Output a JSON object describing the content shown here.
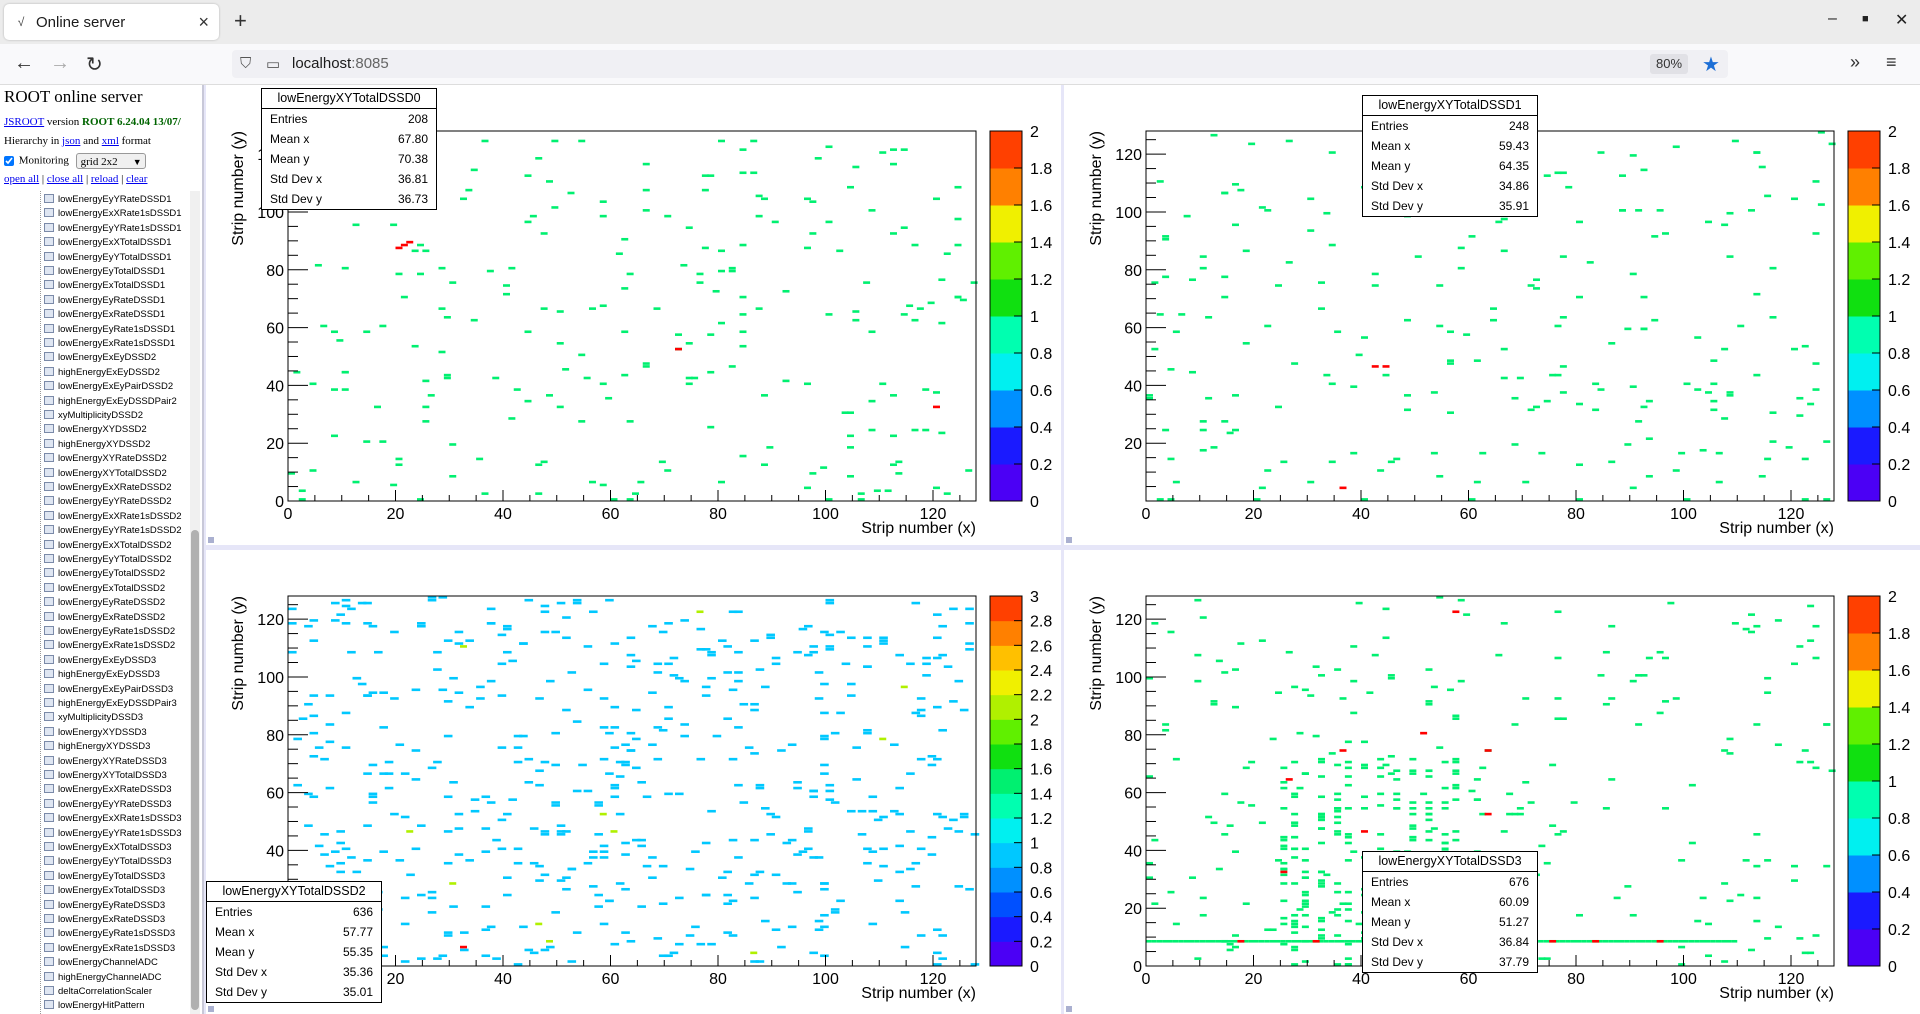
{
  "browser": {
    "tab_title": "Online server",
    "url_host": "localhost",
    "url_port": ":8085",
    "zoom": "80%"
  },
  "sidebar": {
    "title": "ROOT online server",
    "jsroot_link": "JSROOT",
    "version_word": "version",
    "version_value": "ROOT 6.24.04 13/07/",
    "hierarchy_prefix": "Hierarchy in",
    "json_link": "json",
    "and_word": "and",
    "xml_link": "xml",
    "format_word": "format",
    "monitoring_label": "Monitoring",
    "layout_select": "grid 2x2",
    "actions": [
      "open all",
      "close all",
      "reload",
      "clear"
    ],
    "tree_items": [
      "lowEnergyEyYRateDSSD1",
      "lowEnergyExXRate1sDSSD1",
      "lowEnergyEyYRate1sDSSD1",
      "lowEnergyExXTotalDSSD1",
      "lowEnergyEyYTotalDSSD1",
      "lowEnergyEyTotalDSSD1",
      "lowEnergyExTotalDSSD1",
      "lowEnergyEyRateDSSD1",
      "lowEnergyExRateDSSD1",
      "lowEnergyEyRate1sDSSD1",
      "lowEnergyExRate1sDSSD1",
      "lowEnergyExEyDSSD2",
      "highEnergyExEyDSSD2",
      "lowEnergyExEyPairDSSD2",
      "highEnergyExEyDSSDPair2",
      "xyMultiplicityDSSD2",
      "lowEnergyXYDSSD2",
      "highEnergyXYDSSD2",
      "lowEnergyXYRateDSSD2",
      "lowEnergyXYTotalDSSD2",
      "lowEnergyExXRateDSSD2",
      "lowEnergyEyYRateDSSD2",
      "lowEnergyExXRate1sDSSD2",
      "lowEnergyEyYRate1sDSSD2",
      "lowEnergyExXTotalDSSD2",
      "lowEnergyEyYTotalDSSD2",
      "lowEnergyEyTotalDSSD2",
      "lowEnergyExTotalDSSD2",
      "lowEnergyEyRateDSSD2",
      "lowEnergyExRateDSSD2",
      "lowEnergyEyRate1sDSSD2",
      "lowEnergyExRate1sDSSD2",
      "lowEnergyExEyDSSD3",
      "highEnergyExEyDSSD3",
      "lowEnergyExEyPairDSSD3",
      "highEnergyExEyDSSDPair3",
      "xyMultiplicityDSSD3",
      "lowEnergyXYDSSD3",
      "highEnergyXYDSSD3",
      "lowEnergyXYRateDSSD3",
      "lowEnergyXYTotalDSSD3",
      "lowEnergyExXRateDSSD3",
      "lowEnergyEyYRateDSSD3",
      "lowEnergyExXRate1sDSSD3",
      "lowEnergyEyYRate1sDSSD3",
      "lowEnergyExXTotalDSSD3",
      "lowEnergyEyYTotalDSSD3",
      "lowEnergyEyTotalDSSD3",
      "lowEnergyExTotalDSSD3",
      "lowEnergyEyRateDSSD3",
      "lowEnergyExRateDSSD3",
      "lowEnergyEyRate1sDSSD3",
      "lowEnergyExRate1sDSSD3",
      "lowEnergyChannelADC",
      "highEnergyChannelADC",
      "deltaCorrelationScaler",
      "lowEnergyHitPattern"
    ]
  },
  "chart_data": [
    {
      "type": "heatmap",
      "name": "lowEnergyXYTotalDSSD0",
      "xlabel": "Strip number (x)",
      "ylabel": "Strip number (y)",
      "xlim": [
        0,
        128
      ],
      "ylim": [
        0,
        128
      ],
      "x_ticks": [
        "0",
        "20",
        "40",
        "60",
        "80",
        "100",
        "120"
      ],
      "y_ticks": [
        "0",
        "20",
        "40",
        "60",
        "80",
        "100",
        "120"
      ],
      "z_range": [
        0,
        2
      ],
      "z_ticks": [
        "0",
        "0.2",
        "0.4",
        "0.6",
        "0.8",
        "1",
        "1.2",
        "1.4",
        "1.6",
        "1.8",
        "2"
      ],
      "stats": [
        [
          "Entries",
          "208"
        ],
        [
          "Mean x",
          "67.80"
        ],
        [
          "Mean y",
          "70.38"
        ],
        [
          "Std Dev x",
          "36.81"
        ],
        [
          "Std Dev y",
          "36.73"
        ]
      ],
      "points": [
        [
          20,
          87,
          2
        ],
        [
          21,
          88,
          2
        ],
        [
          22,
          89,
          2
        ],
        [
          72,
          52,
          2
        ],
        [
          120,
          32,
          2
        ],
        [
          19,
          95,
          1
        ],
        [
          23,
          86,
          1
        ],
        [
          24,
          88,
          1
        ],
        [
          44,
          96,
          1
        ],
        [
          48,
          110,
          1
        ],
        [
          52,
          106,
          1
        ],
        [
          58,
          98,
          1
        ],
        [
          62,
          90,
          1
        ],
        [
          66,
          107,
          1
        ],
        [
          70,
          98,
          1
        ],
        [
          74,
          94,
          1
        ],
        [
          78,
          112,
          1
        ],
        [
          80,
          86,
          1
        ],
        [
          82,
          80,
          1
        ],
        [
          84,
          88,
          1
        ],
        [
          88,
          104,
          1
        ],
        [
          90,
          96,
          1
        ],
        [
          96,
          104,
          1
        ],
        [
          100,
          96,
          1
        ],
        [
          104,
          108,
          1
        ],
        [
          108,
          100,
          1
        ],
        [
          112,
          92,
          1
        ],
        [
          116,
          88,
          1
        ],
        [
          120,
          104,
          1
        ],
        [
          124,
          108,
          1
        ],
        [
          10,
          80,
          1
        ],
        [
          6,
          60,
          1
        ],
        [
          14,
          58,
          1
        ],
        [
          20,
          78,
          1
        ],
        [
          28,
          66,
          1
        ],
        [
          34,
          62,
          1
        ],
        [
          40,
          74,
          1
        ],
        [
          44,
          58,
          1
        ],
        [
          50,
          54,
          1
        ],
        [
          56,
          66,
          1
        ],
        [
          62,
          58,
          1
        ],
        [
          68,
          66,
          1
        ],
        [
          76,
          78,
          1
        ],
        [
          84,
          70,
          1
        ],
        [
          92,
          72,
          1
        ],
        [
          100,
          64,
          1
        ],
        [
          108,
          58,
          1
        ],
        [
          116,
          62,
          1
        ],
        [
          124,
          70,
          1
        ],
        [
          4,
          40,
          1
        ],
        [
          10,
          44,
          1
        ],
        [
          16,
          32,
          1
        ],
        [
          26,
          36,
          1
        ],
        [
          38,
          42,
          1
        ],
        [
          42,
          38,
          1
        ],
        [
          44,
          34,
          1
        ],
        [
          50,
          32,
          1
        ],
        [
          58,
          40,
          1
        ],
        [
          66,
          46,
          1
        ],
        [
          74,
          42,
          1
        ],
        [
          82,
          46,
          1
        ],
        [
          88,
          36,
          1
        ],
        [
          96,
          40,
          1
        ],
        [
          104,
          30,
          1
        ],
        [
          112,
          36,
          1
        ],
        [
          118,
          38,
          1
        ],
        [
          4,
          10,
          1
        ],
        [
          12,
          6,
          1
        ],
        [
          20,
          14,
          1
        ],
        [
          30,
          8,
          1
        ],
        [
          36,
          2,
          1
        ],
        [
          46,
          12,
          1
        ],
        [
          56,
          6,
          1
        ],
        [
          64,
          2,
          1
        ],
        [
          70,
          10,
          1
        ],
        [
          80,
          6,
          1
        ],
        [
          88,
          12,
          1
        ],
        [
          96,
          4,
          1
        ],
        [
          104,
          8,
          1
        ],
        [
          112,
          12,
          1
        ],
        [
          120,
          4,
          1
        ],
        [
          126,
          10,
          1
        ],
        [
          2,
          0,
          1
        ],
        [
          24,
          0,
          1
        ],
        [
          60,
          0,
          1
        ],
        [
          100,
          0,
          1
        ],
        [
          110,
          120,
          1
        ],
        [
          98,
          118,
          1
        ],
        [
          36,
          124,
          1
        ],
        [
          14,
          118,
          1
        ],
        [
          54,
          124,
          1
        ],
        [
          86,
          124,
          1
        ]
      ]
    },
    {
      "type": "heatmap",
      "name": "lowEnergyXYTotalDSSD1",
      "xlabel": "Strip number (x)",
      "ylabel": "Strip number (y)",
      "xlim": [
        0,
        128
      ],
      "ylim": [
        0,
        128
      ],
      "x_ticks": [
        "0",
        "20",
        "40",
        "60",
        "80",
        "100",
        "120"
      ],
      "y_ticks": [
        "20",
        "40",
        "60",
        "80",
        "100",
        "120"
      ],
      "z_range": [
        0,
        2
      ],
      "z_ticks": [
        "0",
        "0.2",
        "0.4",
        "0.6",
        "0.8",
        "1",
        "1.2",
        "1.4",
        "1.6",
        "1.8",
        "2"
      ],
      "stats": [
        [
          "Entries",
          "248"
        ],
        [
          "Mean x",
          "59.43"
        ],
        [
          "Mean y",
          "64.35"
        ],
        [
          "Std Dev x",
          "34.86"
        ],
        [
          "Std Dev y",
          "35.91"
        ]
      ],
      "points": [
        [
          42,
          46,
          2
        ],
        [
          44,
          46,
          2
        ],
        [
          36,
          4,
          2
        ],
        [
          12,
          126,
          1
        ],
        [
          26,
          124,
          1
        ],
        [
          34,
          120,
          1
        ],
        [
          44,
          118,
          1
        ],
        [
          56,
          122,
          1
        ],
        [
          60,
          126,
          1
        ],
        [
          66,
          118,
          1
        ],
        [
          74,
          112,
          1
        ],
        [
          84,
          120,
          1
        ],
        [
          92,
          114,
          1
        ],
        [
          98,
          122,
          1
        ],
        [
          14,
          106,
          1
        ],
        [
          22,
          100,
          1
        ],
        [
          30,
          104,
          1
        ],
        [
          40,
          108,
          1
        ],
        [
          48,
          98,
          1
        ],
        [
          54,
          104,
          1
        ],
        [
          62,
          100,
          1
        ],
        [
          70,
          106,
          1
        ],
        [
          80,
          96,
          1
        ],
        [
          88,
          100,
          1
        ],
        [
          96,
          92,
          1
        ],
        [
          104,
          96,
          1
        ],
        [
          112,
          100,
          1
        ],
        [
          120,
          104,
          1
        ],
        [
          124,
          92,
          1
        ],
        [
          10,
          84,
          1
        ],
        [
          18,
          86,
          1
        ],
        [
          26,
          82,
          1
        ],
        [
          34,
          88,
          1
        ],
        [
          42,
          78,
          1
        ],
        [
          50,
          84,
          1
        ],
        [
          58,
          80,
          1
        ],
        [
          66,
          86,
          1
        ],
        [
          72,
          76,
          1
        ],
        [
          82,
          82,
          1
        ],
        [
          90,
          78,
          1
        ],
        [
          108,
          84,
          1
        ],
        [
          116,
          80,
          1
        ],
        [
          6,
          64,
          1
        ],
        [
          14,
          70,
          1
        ],
        [
          22,
          60,
          1
        ],
        [
          32,
          66,
          1
        ],
        [
          40,
          56,
          1
        ],
        [
          48,
          62,
          1
        ],
        [
          56,
          58,
          1
        ],
        [
          64,
          66,
          1
        ],
        [
          76,
          60,
          1
        ],
        [
          86,
          54,
          1
        ],
        [
          94,
          62,
          1
        ],
        [
          102,
          56,
          1
        ],
        [
          110,
          60,
          1
        ],
        [
          120,
          52,
          1
        ],
        [
          8,
          44,
          1
        ],
        [
          16,
          36,
          1
        ],
        [
          24,
          32,
          1
        ],
        [
          34,
          40,
          1
        ],
        [
          48,
          36,
          1
        ],
        [
          56,
          30,
          1
        ],
        [
          66,
          42,
          1
        ],
        [
          74,
          34,
          1
        ],
        [
          84,
          38,
          1
        ],
        [
          92,
          32,
          1
        ],
        [
          100,
          40,
          1
        ],
        [
          108,
          36,
          1
        ],
        [
          116,
          30,
          1
        ],
        [
          124,
          38,
          1
        ],
        [
          4,
          14,
          1
        ],
        [
          12,
          18,
          1
        ],
        [
          22,
          10,
          1
        ],
        [
          30,
          6,
          1
        ],
        [
          46,
          14,
          1
        ],
        [
          54,
          8,
          1
        ],
        [
          62,
          16,
          1
        ],
        [
          70,
          6,
          1
        ],
        [
          80,
          12,
          1
        ],
        [
          90,
          4,
          1
        ],
        [
          98,
          10,
          1
        ],
        [
          106,
          16,
          1
        ],
        [
          114,
          8,
          1
        ],
        [
          122,
          14,
          1
        ],
        [
          2,
          0,
          1
        ],
        [
          20,
          0,
          1
        ],
        [
          40,
          0,
          1
        ],
        [
          60,
          0,
          1
        ],
        [
          80,
          0,
          1
        ],
        [
          100,
          0,
          1
        ],
        [
          126,
          0,
          1
        ]
      ]
    },
    {
      "type": "heatmap",
      "name": "lowEnergyXYTotalDSSD2",
      "xlabel": "Strip number (x)",
      "ylabel": "Strip number (y)",
      "xlim": [
        0,
        128
      ],
      "ylim": [
        0,
        128
      ],
      "x_ticks": [
        "20",
        "40",
        "60",
        "80",
        "100",
        "120"
      ],
      "y_ticks": [
        "40",
        "60",
        "80",
        "100",
        "120"
      ],
      "z_range": [
        0,
        3
      ],
      "z_ticks": [
        "0",
        "0.2",
        "0.4",
        "0.6",
        "0.8",
        "1",
        "1.2",
        "1.4",
        "1.6",
        "1.8",
        "2",
        "2.2",
        "2.4",
        "2.6",
        "2.8",
        "3"
      ],
      "stats": [
        [
          "Entries",
          "636"
        ],
        [
          "Mean x",
          "57.77"
        ],
        [
          "Mean y",
          "55.35"
        ],
        [
          "Std Dev x",
          "35.36"
        ],
        [
          "Std Dev y",
          "35.01"
        ]
      ],
      "points": [
        [
          32,
          6,
          3
        ],
        [
          32,
          110,
          2
        ],
        [
          22,
          46,
          2
        ],
        [
          60,
          46,
          2
        ],
        [
          86,
          4,
          2
        ],
        [
          110,
          78,
          2
        ],
        [
          46,
          14,
          2
        ],
        [
          76,
          122,
          2
        ],
        [
          58,
          52,
          2
        ],
        [
          30,
          28,
          2
        ],
        [
          48,
          8,
          2
        ],
        [
          114,
          96,
          2
        ]
      ]
    },
    {
      "type": "heatmap",
      "name": "lowEnergyXYTotalDSSD3",
      "xlabel": "Strip number (x)",
      "ylabel": "Strip number (y)",
      "xlim": [
        0,
        128
      ],
      "ylim": [
        0,
        128
      ],
      "x_ticks": [
        "0",
        "20",
        "40",
        "60",
        "80",
        "100",
        "120"
      ],
      "y_ticks": [
        "0",
        "20",
        "40",
        "60",
        "80",
        "100",
        "120"
      ],
      "z_range": [
        0,
        2
      ],
      "z_ticks": [
        "0",
        "0.2",
        "0.4",
        "0.6",
        "0.8",
        "1",
        "1.2",
        "1.4",
        "1.6",
        "1.8",
        "2"
      ],
      "stats": [
        [
          "Entries",
          "676"
        ],
        [
          "Mean x",
          "60.09"
        ],
        [
          "Mean y",
          "51.27"
        ],
        [
          "Std Dev x",
          "36.84"
        ],
        [
          "Std Dev y",
          "37.79"
        ]
      ],
      "points": [
        [
          57,
          122,
          2
        ],
        [
          36,
          74,
          2
        ],
        [
          51,
          80,
          2
        ],
        [
          63,
          74,
          2
        ],
        [
          26,
          64,
          2
        ],
        [
          63,
          52,
          2
        ],
        [
          17,
          8,
          2
        ],
        [
          31,
          8,
          2
        ],
        [
          46,
          8,
          2
        ],
        [
          67,
          8,
          2
        ],
        [
          75,
          8,
          2
        ],
        [
          83,
          8,
          2
        ],
        [
          95,
          8,
          2
        ],
        [
          41,
          8,
          2
        ],
        [
          25,
          32,
          2
        ],
        [
          43,
          30,
          2
        ],
        [
          40,
          46,
          2
        ]
      ]
    }
  ]
}
